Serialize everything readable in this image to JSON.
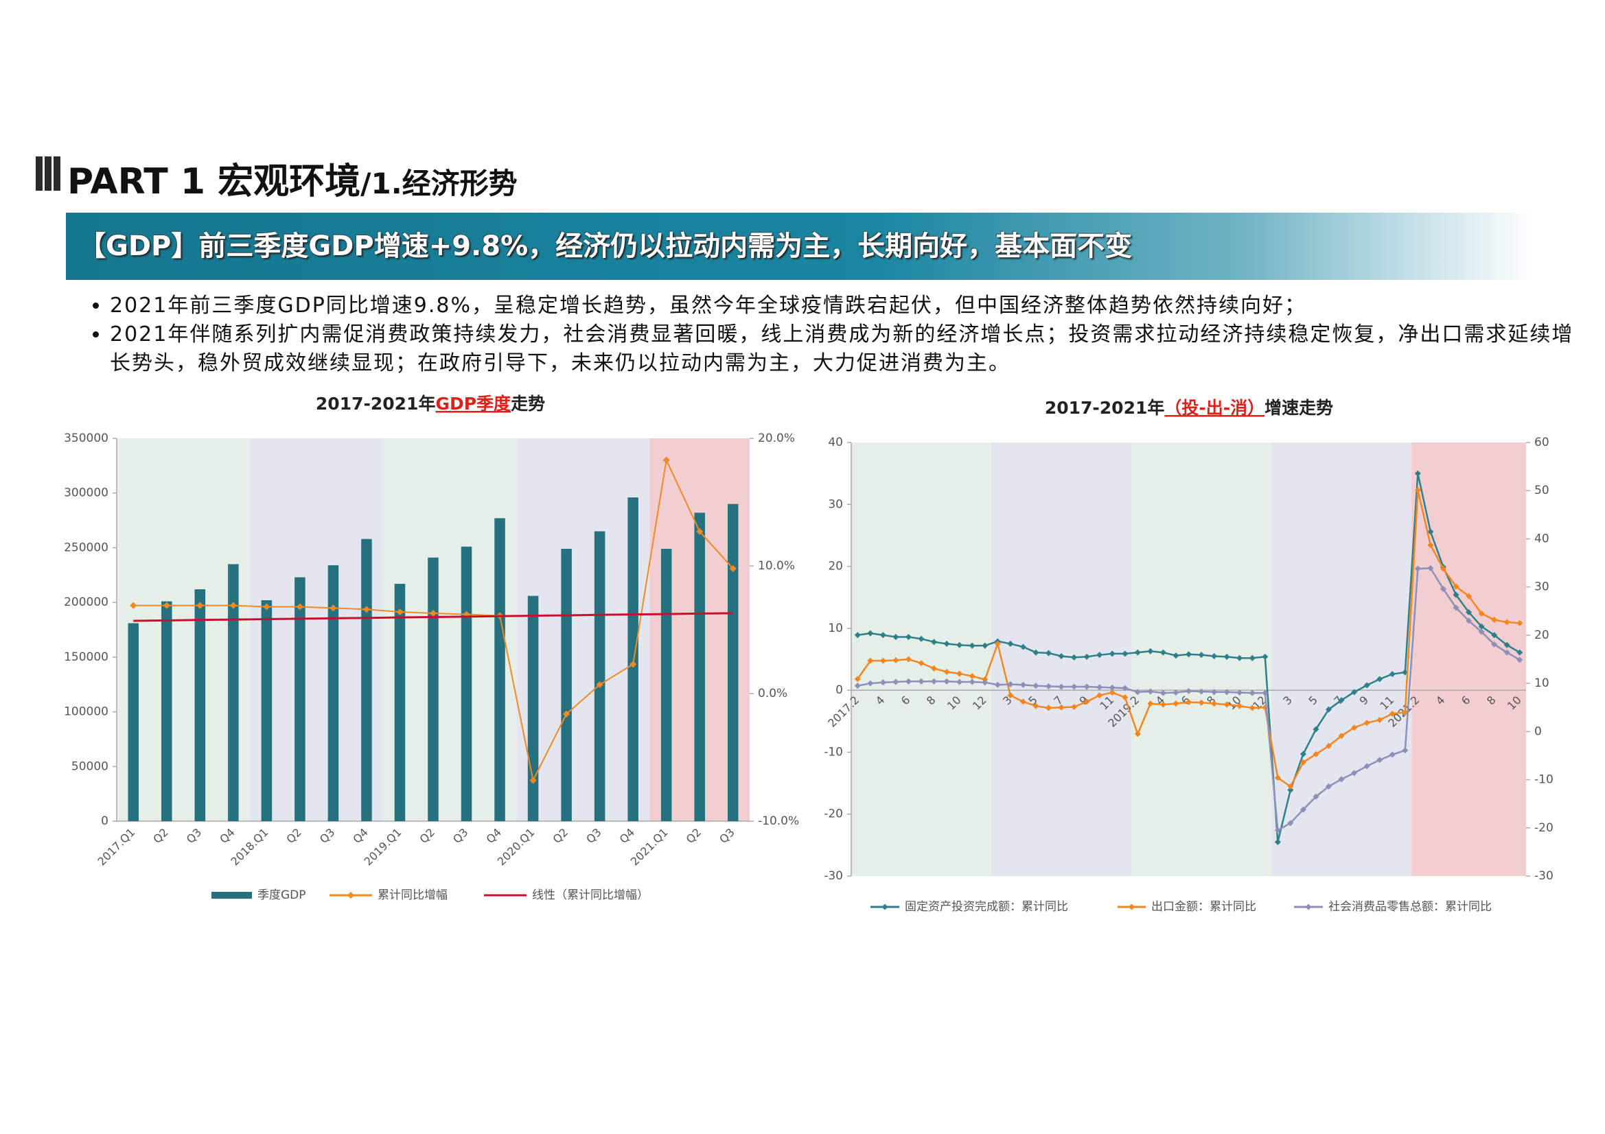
{
  "header": {
    "title": "PART 1 宏观环境",
    "subtitle": "/1.经济形势"
  },
  "banner": "【GDP】前三季度GDP增速+9.8%，经济仍以拉动内需为主，长期向好，基本面不变",
  "bullets": [
    "2021年前三季度GDP同比增速9.8%，呈稳定增长趋势，虽然今年全球疫情跌宕起伏，但中国经济整体趋势依然持续向好；",
    "2021年伴随系列扩内需促消费政策持续发力，社会消费显著回暖，线上消费成为新的经济增长点；投资需求拉动经济持续稳定恢复，净出口需求延续增长势头，稳外贸成效继续显现；在政府引导下，未来仍以拉动内需为主，大力促进消费为主。"
  ],
  "chart_data": [
    {
      "type": "combo",
      "title": {
        "before": "2017-2021年",
        "highlight": "GDP季度",
        "after": "走势"
      },
      "title_highlight_color": "#e0201b",
      "categories": [
        "2017.Q1",
        "Q2",
        "Q3",
        "Q4",
        "2018.Q1",
        "Q2",
        "Q3",
        "Q4",
        "2019.Q1",
        "Q2",
        "Q3",
        "Q4",
        "2020.Q1",
        "Q2",
        "Q3",
        "Q4",
        "2021.Q1",
        "Q2",
        "Q3"
      ],
      "series": [
        {
          "name": "季度GDP",
          "type": "bar",
          "color": "#26717f",
          "values": [
            181000,
            201000,
            212000,
            235000,
            202000,
            223000,
            234000,
            258000,
            217000,
            241000,
            251000,
            277000,
            206000,
            249000,
            265000,
            296000,
            249000,
            282000,
            290000
          ]
        },
        {
          "name": "累计同比增幅",
          "type": "line",
          "axis": "y2",
          "color": "#f08a24",
          "marker": true,
          "values": [
            6.9,
            6.9,
            6.9,
            6.9,
            6.8,
            6.8,
            6.7,
            6.6,
            6.4,
            6.3,
            6.2,
            6.1,
            -6.8,
            -1.6,
            0.7,
            2.3,
            18.3,
            12.7,
            9.8
          ]
        },
        {
          "name": "线性（累计同比增幅）",
          "type": "line",
          "axis": "y2",
          "color": "#c8102e",
          "marker": false,
          "values": [
            5.7,
            5.73,
            5.77,
            5.8,
            5.83,
            5.87,
            5.9,
            5.93,
            5.97,
            6.0,
            6.03,
            6.07,
            6.1,
            6.13,
            6.17,
            6.2,
            6.23,
            6.27,
            6.3
          ]
        }
      ],
      "ylim": [
        0,
        350000
      ],
      "yticks": [
        0,
        50000,
        100000,
        150000,
        200000,
        250000,
        300000,
        350000
      ],
      "y2lim": [
        -10,
        20
      ],
      "y2ticks": [
        {
          "value": -10,
          "label": "-10.0%"
        },
        {
          "value": 0,
          "label": "0.0%"
        },
        {
          "value": 10,
          "label": "10.0%"
        },
        {
          "value": 20,
          "label": "20.0%"
        }
      ],
      "grid": false,
      "zero_line": false,
      "legend": "bottom"
    },
    {
      "type": "line",
      "title": {
        "before": "2017-2021年",
        "highlight": "（投-出-消）",
        "after": "增速走势"
      },
      "title_highlight_color": "#e0201b",
      "categories": [
        "2017.2",
        null,
        "4",
        null,
        "6",
        null,
        "8",
        null,
        "10",
        null,
        "12",
        null,
        "3",
        null,
        "5",
        null,
        "7",
        null,
        "9",
        null,
        "11",
        null,
        "2019.2",
        null,
        "4",
        null,
        "6",
        null,
        "8",
        null,
        "10",
        null,
        "12",
        null,
        "3",
        null,
        "5",
        null,
        "7",
        null,
        "9",
        null,
        "11",
        null,
        "2021.2",
        null,
        "4",
        null,
        "6",
        null,
        "8",
        null,
        "10"
      ],
      "series": [
        {
          "name": "固定资产投资完成额：累计同比",
          "color": "#2d7f8a",
          "marker": true,
          "values": [
            8.9,
            9.2,
            8.9,
            8.6,
            8.6,
            8.3,
            7.8,
            7.5,
            7.3,
            7.2,
            7.2,
            7.9,
            7.5,
            7.0,
            6.1,
            6.0,
            5.5,
            5.3,
            5.4,
            5.7,
            5.9,
            5.9,
            6.1,
            6.3,
            6.1,
            5.6,
            5.8,
            5.7,
            5.5,
            5.4,
            5.2,
            5.2,
            5.4,
            -24.5,
            -16.1,
            -10.3,
            -6.3,
            -3.1,
            -1.6,
            -0.3,
            0.8,
            1.8,
            2.6,
            2.9,
            35.0,
            25.6,
            19.9,
            15.4,
            12.6,
            10.3,
            8.9,
            7.3,
            6.1
          ]
        },
        {
          "name": "出口金额：累计同比",
          "color": "#f5861f",
          "axis": "y2",
          "marker": true,
          "values": [
            10.9,
            14.7,
            14.7,
            14.8,
            15.0,
            14.2,
            13.1,
            12.4,
            12.0,
            11.5,
            10.8,
            18.2,
            7.5,
            6.2,
            5.3,
            4.9,
            5.0,
            5.1,
            6.2,
            7.5,
            8.1,
            7.1,
            -0.5,
            5.8,
            5.6,
            5.8,
            6.1,
            6.0,
            5.8,
            5.6,
            5.3,
            4.9,
            5.0,
            -9.6,
            -11.4,
            -6.4,
            -4.7,
            -3.0,
            -0.9,
            0.8,
            1.8,
            2.4,
            3.7,
            4.0,
            50.1,
            38.7,
            33.8,
            30.1,
            28.1,
            24.5,
            23.2,
            22.7,
            22.5
          ]
        },
        {
          "name": "社会消费品零售总额：累计同比",
          "color": "#8d8fb8",
          "axis": "y2",
          "marker": true,
          "values": [
            9.5,
            10.0,
            10.2,
            10.3,
            10.4,
            10.4,
            10.4,
            10.4,
            10.3,
            10.3,
            10.2,
            9.7,
            9.8,
            9.7,
            9.5,
            9.4,
            9.3,
            9.3,
            9.3,
            9.2,
            9.1,
            9.0,
            8.2,
            8.3,
            8.0,
            8.1,
            8.4,
            8.3,
            8.2,
            8.2,
            8.1,
            8.0,
            8.0,
            -20.5,
            -19.0,
            -16.2,
            -13.5,
            -11.4,
            -9.9,
            -8.6,
            -7.2,
            -5.9,
            -4.8,
            -3.9,
            33.8,
            33.9,
            29.6,
            25.7,
            23.0,
            20.7,
            18.1,
            16.4,
            14.9
          ]
        }
      ],
      "ylim": [
        -30,
        40
      ],
      "yticks": [
        -30,
        -20,
        -10,
        0,
        10,
        20,
        30,
        40
      ],
      "y2lim": [
        -30,
        60
      ],
      "y2ticks": [
        -30,
        -20,
        -10,
        0,
        10,
        20,
        30,
        40,
        50,
        60
      ],
      "grid": false,
      "zero_line": true,
      "legend": "bottom"
    }
  ]
}
